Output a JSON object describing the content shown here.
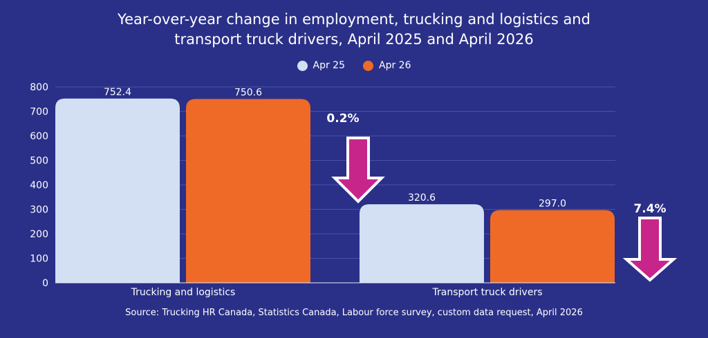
{
  "chart_data": {
    "type": "bar",
    "title": "Year-over-year change in employment, trucking and logistics and transport truck drivers, April 2025 and April 2026",
    "title_lines": [
      "Year-over-year change in employment, trucking and logistics and",
      "transport truck drivers, April 2025 and April 2026"
    ],
    "categories": [
      "Trucking and logistics",
      "Transport truck drivers"
    ],
    "series": [
      {
        "name": "Apr 25",
        "values": [
          752.4,
          320.6
        ],
        "labels": [
          "752.4",
          "320.6"
        ],
        "color": "#d3dff3"
      },
      {
        "name": "Apr 26",
        "values": [
          750.6,
          297.0
        ],
        "labels": [
          "750.6",
          "297.0"
        ],
        "color": "#ef6a27"
      }
    ],
    "ylim": [
      0,
      800
    ],
    "yticks": [
      "0",
      "100",
      "200",
      "300",
      "400",
      "500",
      "600",
      "700",
      "800"
    ],
    "grid": true,
    "legend_position": "top-center",
    "annotations": [
      {
        "category": "Trucking and logistics",
        "label": "0.2%",
        "direction": "down"
      },
      {
        "category": "Transport truck drivers",
        "label": "7.4%",
        "direction": "down"
      }
    ],
    "arrow_color": "#c8258a",
    "source": "Source: Trucking HR Canada, Statistics Canada, Labour force survey, custom data request, April 2026"
  }
}
